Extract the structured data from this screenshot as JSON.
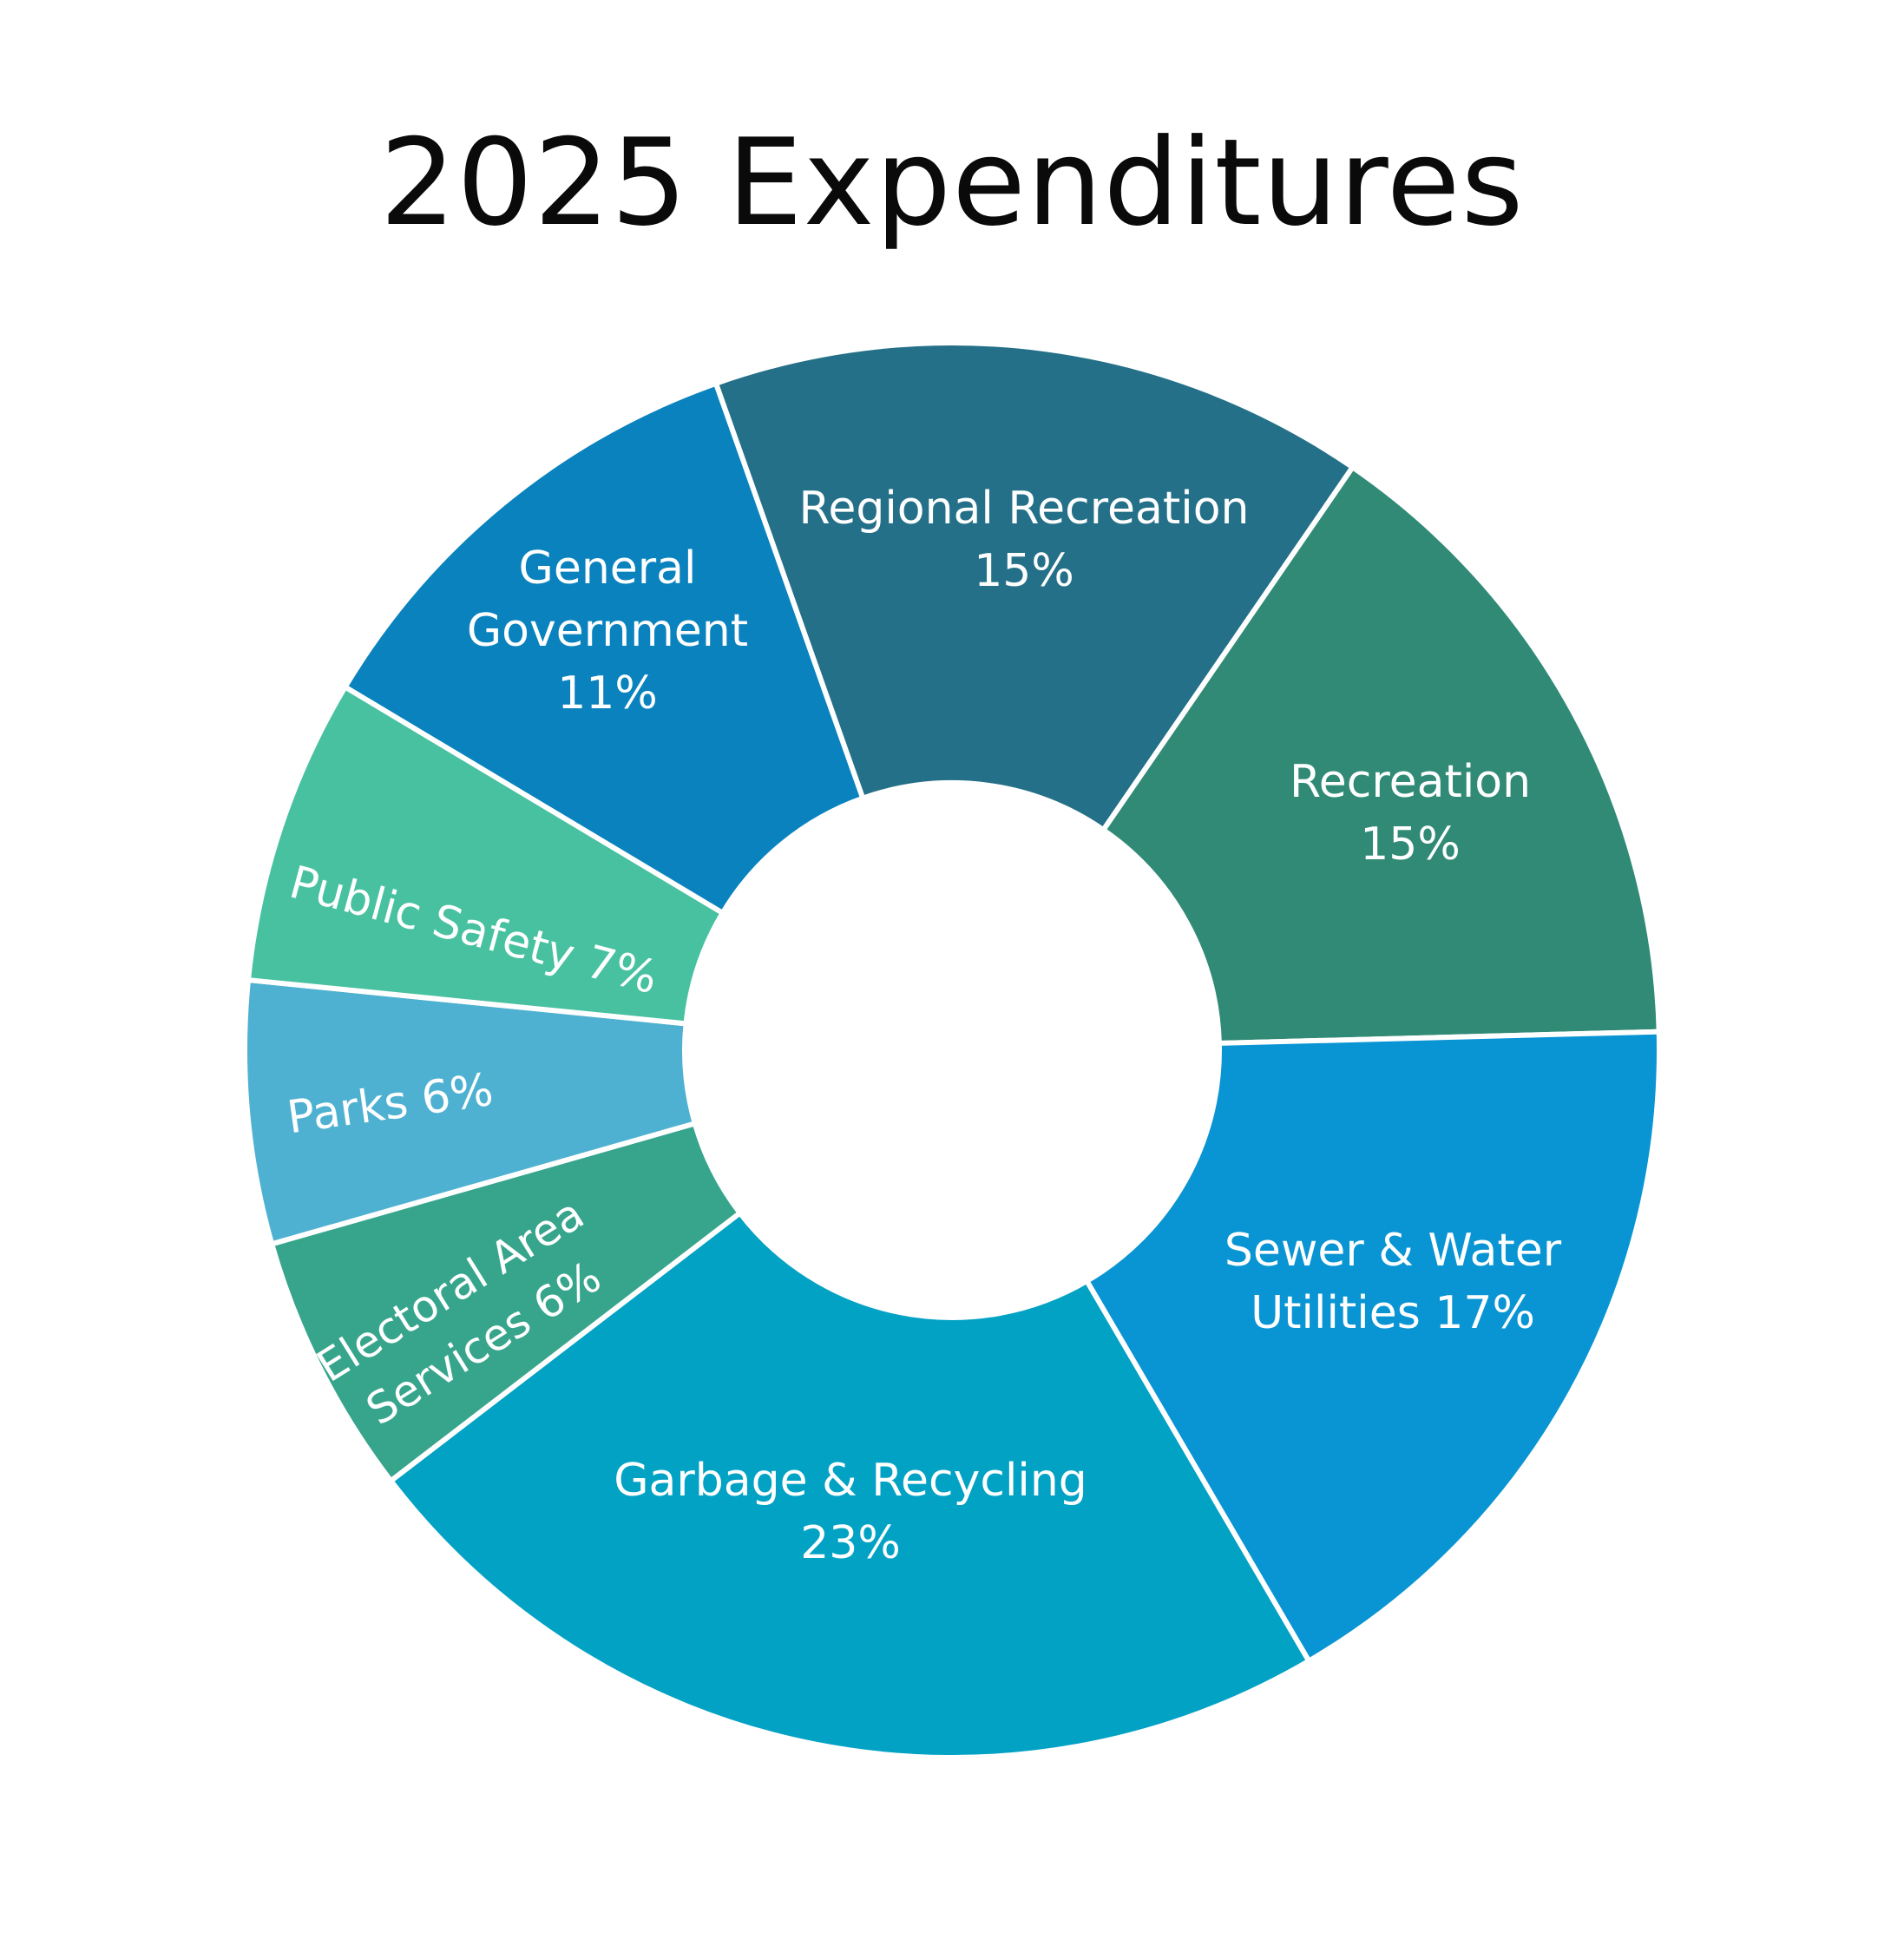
{
  "chart_data": {
    "type": "pie",
    "title": "2025 Expenditures",
    "donut": true,
    "categories": [
      "Regional Recreation",
      "Recreation",
      "Sewer & Water Utilities",
      "Garbage & Recycling",
      "Electoral Area Services",
      "Parks",
      "Public Safety",
      "General Government"
    ],
    "values": [
      15,
      15,
      17,
      23,
      6,
      6,
      7,
      11
    ],
    "labels": [
      [
        "Regional Recreation",
        "15%"
      ],
      [
        "Recreation",
        "15%"
      ],
      [
        "Sewer & Water",
        "Utilities 17%"
      ],
      [
        "Garbage & Recycling",
        "23%"
      ],
      [
        "Electoral Area",
        "Services 6%"
      ],
      [
        "Parks 6%"
      ],
      [
        "Public Safety 7%"
      ],
      [
        "General",
        "Government",
        "11%"
      ]
    ],
    "colors": [
      "#247088",
      "#308a76",
      "#0994d3",
      "#02a2c4",
      "#37a58c",
      "#4fb1d1",
      "#48c1a0",
      "#0982be"
    ],
    "legend": "none",
    "start_angle_deg": -19.5,
    "direction": "clockwise"
  }
}
